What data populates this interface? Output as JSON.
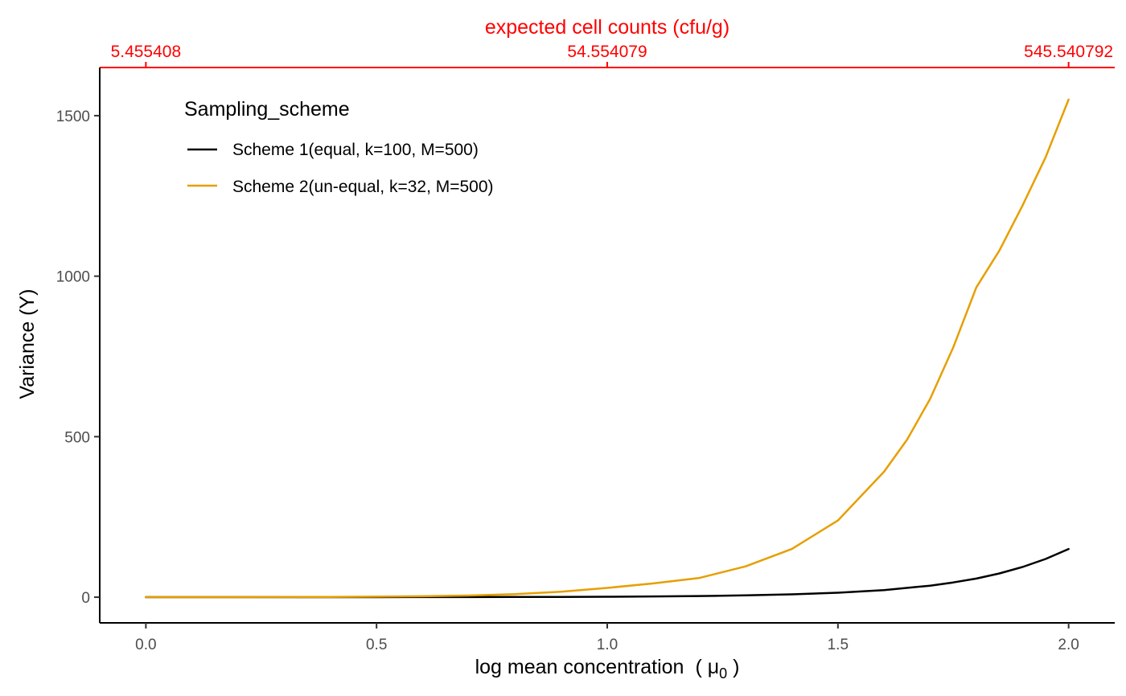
{
  "chart_data": {
    "type": "line",
    "title": "",
    "xlabel": "log mean concentration",
    "xlabel_symbol": "( μ",
    "xlabel_subscript": "0",
    "xlabel_close": " )",
    "ylabel": "Variance (Y)",
    "top_axis_label": "expected cell counts (cfu/g)",
    "top_axis_color": "#ff0000",
    "xlim": [
      -0.1,
      2.1
    ],
    "ylim": [
      -80,
      1650
    ],
    "x_ticks": [
      {
        "value": 0.0,
        "label": "0.0"
      },
      {
        "value": 0.5,
        "label": "0.5"
      },
      {
        "value": 1.0,
        "label": "1.0"
      },
      {
        "value": 1.5,
        "label": "1.5"
      },
      {
        "value": 2.0,
        "label": "2.0"
      }
    ],
    "y_ticks": [
      {
        "value": 0,
        "label": "0"
      },
      {
        "value": 500,
        "label": "500"
      },
      {
        "value": 1000,
        "label": "1000"
      },
      {
        "value": 1500,
        "label": "1500"
      }
    ],
    "top_ticks": [
      {
        "value": 0.0,
        "label": "5.455408"
      },
      {
        "value": 1.0,
        "label": "54.554079"
      },
      {
        "value": 2.0,
        "label": "545.540792"
      }
    ],
    "legend": {
      "title": "Sampling_scheme",
      "position": "top-left"
    },
    "grid": false,
    "series": [
      {
        "name": "Scheme 1(equal, k=100, M=500)",
        "color": "#000000",
        "x": [
          0.0,
          0.1,
          0.2,
          0.3,
          0.4,
          0.5,
          0.6,
          0.7,
          0.8,
          0.9,
          1.0,
          1.1,
          1.2,
          1.3,
          1.4,
          1.5,
          1.6,
          1.7,
          1.75,
          1.8,
          1.85,
          1.9,
          1.95,
          2.0
        ],
        "values": [
          0,
          0,
          0,
          0.1,
          0.1,
          0.2,
          0.3,
          0.4,
          0.6,
          0.9,
          1.4,
          2.3,
          3.5,
          5.6,
          9,
          14,
          22,
          36,
          46,
          58,
          74,
          94,
          119,
          150
        ]
      },
      {
        "name": "Scheme 2(un-equal, k=32, M=500)",
        "color": "#e69f00",
        "x": [
          0.0,
          0.1,
          0.2,
          0.3,
          0.4,
          0.5,
          0.6,
          0.7,
          0.8,
          0.9,
          1.0,
          1.1,
          1.2,
          1.3,
          1.4,
          1.5,
          1.6,
          1.65,
          1.7,
          1.75,
          1.8,
          1.85,
          1.9,
          1.95,
          2.0
        ],
        "values": [
          0,
          0.1,
          0.2,
          0.4,
          0.9,
          1.6,
          2.9,
          5.2,
          9.3,
          17,
          29,
          43,
          60,
          96,
          150,
          239,
          391,
          491,
          618,
          778,
          965,
          1080,
          1220,
          1370,
          1550
        ]
      }
    ]
  }
}
